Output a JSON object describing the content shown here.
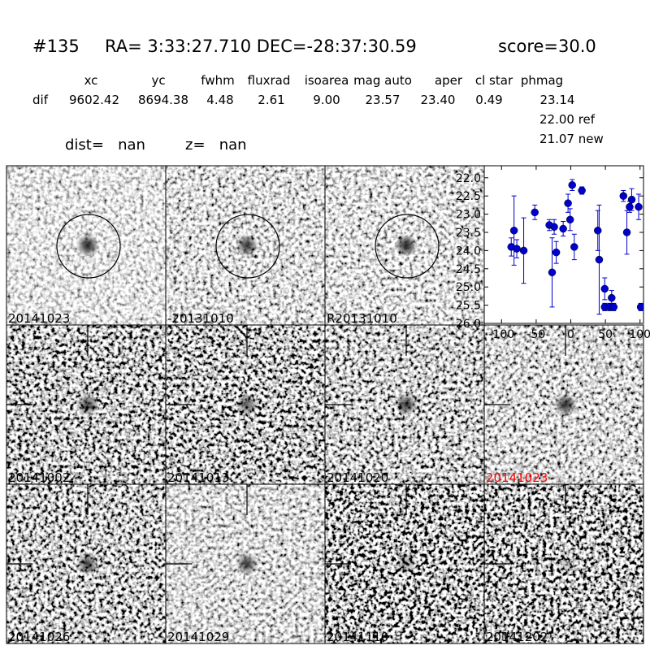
{
  "header": {
    "id": "#135",
    "coords": "RA= 3:33:27.710 DEC=-28:37:30.59",
    "score": "score=30.0"
  },
  "table": {
    "columns": [
      "xc",
      "yc",
      "fwhm",
      "fluxrad",
      "isoarea",
      "mag auto",
      "aper",
      "cl star",
      "phmag"
    ],
    "row_label": "dif",
    "values": [
      "9602.42",
      "8694.38",
      "4.48",
      "2.61",
      "9.00",
      "23.57",
      "23.40",
      "0.49",
      "23.14"
    ],
    "phmag_ref": "22.00 ref",
    "phmag_new": "21.07 new"
  },
  "info": {
    "dist": "dist=   nan",
    "z": "z=   nan"
  },
  "stamps": [
    {
      "label": "20141023"
    },
    {
      "label": "-20131010"
    },
    {
      "label": "R20131010"
    },
    {
      "label": "20141002"
    },
    {
      "label": "20141013"
    },
    {
      "label": "20141020"
    },
    {
      "label": "20141023",
      "color": "#ff0000"
    },
    {
      "label": "20141026"
    },
    {
      "label": "20141029"
    },
    {
      "label": "20141110"
    },
    {
      "label": "20141202"
    }
  ],
  "chart_data": {
    "type": "scatter",
    "color": "#0000cc",
    "x": [
      -86,
      -82,
      -78,
      -68,
      -52,
      -31,
      -27,
      -24,
      -21,
      -11,
      -4,
      -1,
      2,
      5,
      16,
      39,
      41,
      49,
      49,
      56,
      59,
      62,
      76,
      81,
      85,
      88,
      98,
      101
    ],
    "values": [
      23.9,
      23.45,
      23.95,
      24.0,
      22.95,
      23.3,
      24.6,
      23.35,
      24.05,
      23.4,
      22.7,
      23.15,
      22.2,
      23.9,
      22.35,
      23.45,
      24.25,
      25.05,
      25.55,
      25.55,
      25.3,
      25.55,
      22.5,
      23.5,
      22.8,
      22.6,
      22.8,
      25.55
    ],
    "errors": [
      0.25,
      0.95,
      0.25,
      0.9,
      0.2,
      0.15,
      0.95,
      0.2,
      0.3,
      0.2,
      0.25,
      0.3,
      0.15,
      0.35,
      0.1,
      0.55,
      1.5,
      0.3,
      0.1,
      0.1,
      0.2,
      0.1,
      0.15,
      0.6,
      0.15,
      0.3,
      0.35,
      0.1
    ],
    "xlim": [
      -125,
      105
    ],
    "xticks": [
      -100,
      -50,
      0,
      50,
      100
    ],
    "ylim": [
      21.67,
      26.0
    ],
    "y_inverted": true,
    "yticks": [
      {
        "value": 22,
        "label": "22.0"
      },
      {
        "value": 22.5,
        "label": "22.5"
      },
      {
        "value": 23,
        "label": "23.0"
      },
      {
        "value": 23.5,
        "label": "23.5"
      },
      {
        "value": 24,
        "label": "24.0"
      },
      {
        "value": 24.5,
        "label": "24.5"
      },
      {
        "value": 25,
        "label": "25.0"
      },
      {
        "value": 25.5,
        "label": "25.5"
      },
      {
        "value": 26,
        "label": "26.0"
      }
    ]
  }
}
